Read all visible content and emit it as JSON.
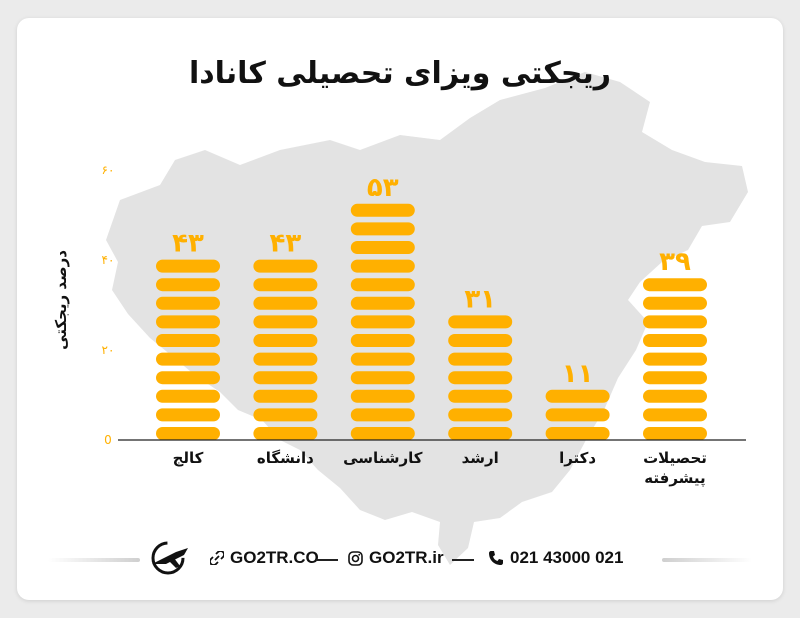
{
  "title": "ریجکتی ویزای تحصیلی کانادا",
  "chart_data": {
    "type": "bar",
    "title": "ریجکتی ویزای تحصیلی کانادا",
    "ylabel": "درصد ریجکتی",
    "xlabel": "",
    "ylim": [
      0,
      60
    ],
    "yticks": [
      0,
      20,
      40,
      60
    ],
    "ytick_labels": [
      "0",
      "۲۰",
      "۴۰",
      "۶۰"
    ],
    "categories": [
      "کالج",
      "دانشگاه",
      "کارشناسی",
      "ارشد",
      "دکترا",
      "تحصیلات پیشرفته"
    ],
    "values": [
      43,
      43,
      53,
      31,
      11,
      39
    ],
    "value_labels": [
      "۴۳",
      "۴۳",
      "۵۳",
      "۳۱",
      "۱۱",
      "۳۹"
    ],
    "grid": false,
    "bar_color": "#ffb000"
  },
  "footer": {
    "website": "GO2TR.CO",
    "instagram": "GO2TR.ir",
    "phone": "021 43000 021",
    "logo_icon": "airplane-logo-icon",
    "link_icon": "link-icon",
    "instagram_icon": "instagram-icon",
    "phone_icon": "phone-icon"
  }
}
